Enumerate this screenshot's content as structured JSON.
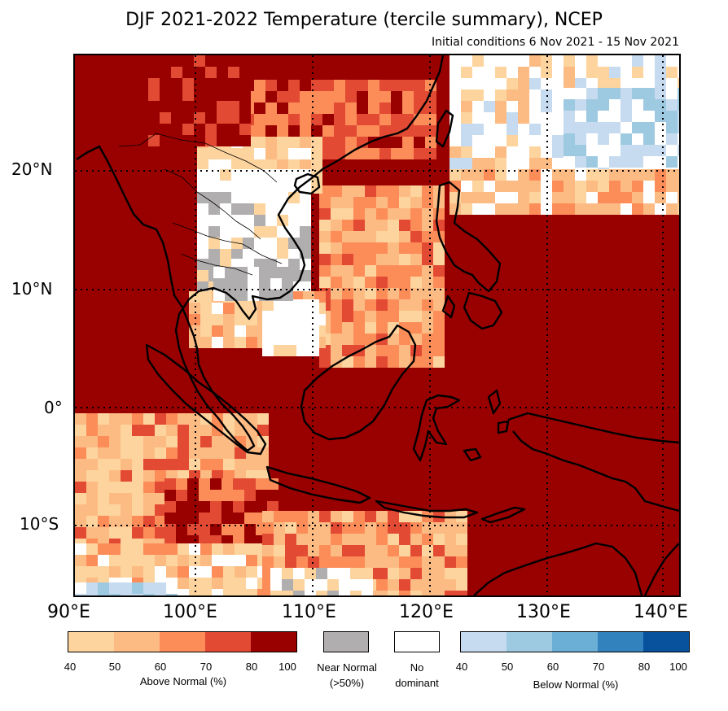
{
  "title": "DJF 2021-2022 Temperature (tercile summary), NCEP",
  "subtitle": "Initial conditions 6 Nov 2021 - 15 Nov 2021",
  "map": {
    "region": "Southeast Asia",
    "lon_range": [
      90,
      140
    ],
    "lat_range": [
      -16,
      30
    ],
    "lat_labels": [
      "20°N",
      "10°N",
      "0°",
      "10°S"
    ],
    "lon_labels": [
      "90°E",
      "100°E",
      "110°E",
      "120°E",
      "130°E",
      "140°E"
    ]
  },
  "colors": {
    "above": [
      "#fdd49e",
      "#fdbb84",
      "#fc8d59",
      "#e34a33",
      "#990000"
    ],
    "near": "#b0aeae",
    "nodom": "#ffffff",
    "below": [
      "#c6dbef",
      "#9ecae1",
      "#6baed6",
      "#3182bd",
      "#08519c"
    ]
  },
  "legend": {
    "above_ticks": [
      "40",
      "50",
      "60",
      "70",
      "80",
      "100"
    ],
    "above_label": "Above Normal (%)",
    "near_label_1": "Near Normal",
    "near_label_2": "(>50%)",
    "nodom_label_1": "No",
    "nodom_label_2": "dominant",
    "below_ticks": [
      "40",
      "50",
      "60",
      "70",
      "80",
      "100"
    ],
    "below_label": "Below Normal (%)"
  }
}
